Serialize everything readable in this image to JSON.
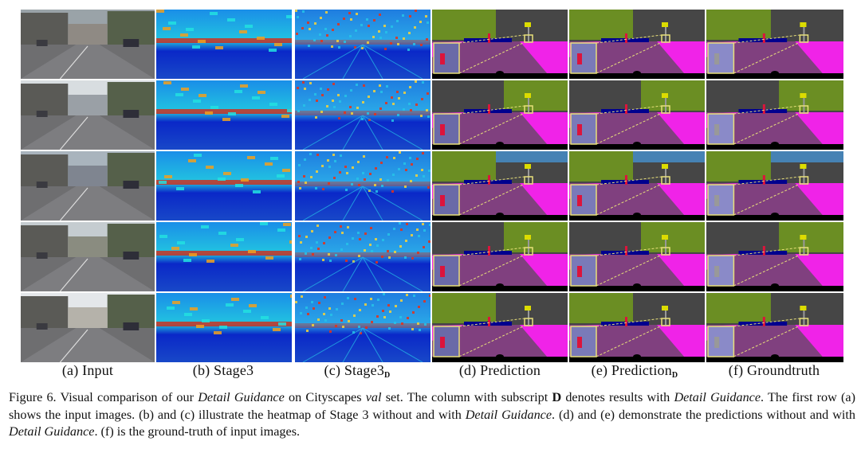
{
  "columns": [
    {
      "id": "input",
      "label": "(a) Input",
      "sub": ""
    },
    {
      "id": "stage3",
      "label": "(b) Stage3",
      "sub": ""
    },
    {
      "id": "stage3d",
      "label": "(c) Stage3",
      "sub": "D"
    },
    {
      "id": "pred",
      "label": "(d) Prediction",
      "sub": ""
    },
    {
      "id": "predd",
      "label": "(e) Prediction",
      "sub": "D"
    },
    {
      "id": "gt",
      "label": "(f) Groundtruth",
      "sub": ""
    }
  ],
  "row_count": 5,
  "caption": {
    "p1": "Figure 6. Visual comparison of our ",
    "i1": "Detail Guidance",
    "p2": " on Cityscapes ",
    "i2": "val",
    "p3": " set.  The column with subscript ",
    "b1": "D",
    "p4": " denotes results with ",
    "i3": "Detail Guidance",
    "p5": ". The first row (a) shows the input images. (b) and (c) illustrate the heatmap of Stage 3 without and with ",
    "i4": "Detail Guidance",
    "p6": ". (d) and (e) demonstrate the predictions without and with ",
    "i5": "Detail Guidance",
    "p7": ". (f) is the ground-truth of input images."
  },
  "colors": {
    "road": "#80407f",
    "sidewalk": "#f023e8",
    "building": "#464646",
    "vegetation": "#6b8e23",
    "sky": "#4682b4",
    "car": "#00008e",
    "person": "#dc143c",
    "pole": "#999999",
    "sign": "#dcdc00",
    "heat_low": "#0a28c8",
    "heat_high": "#e0200a",
    "zoom_box": "#e8e07a"
  }
}
